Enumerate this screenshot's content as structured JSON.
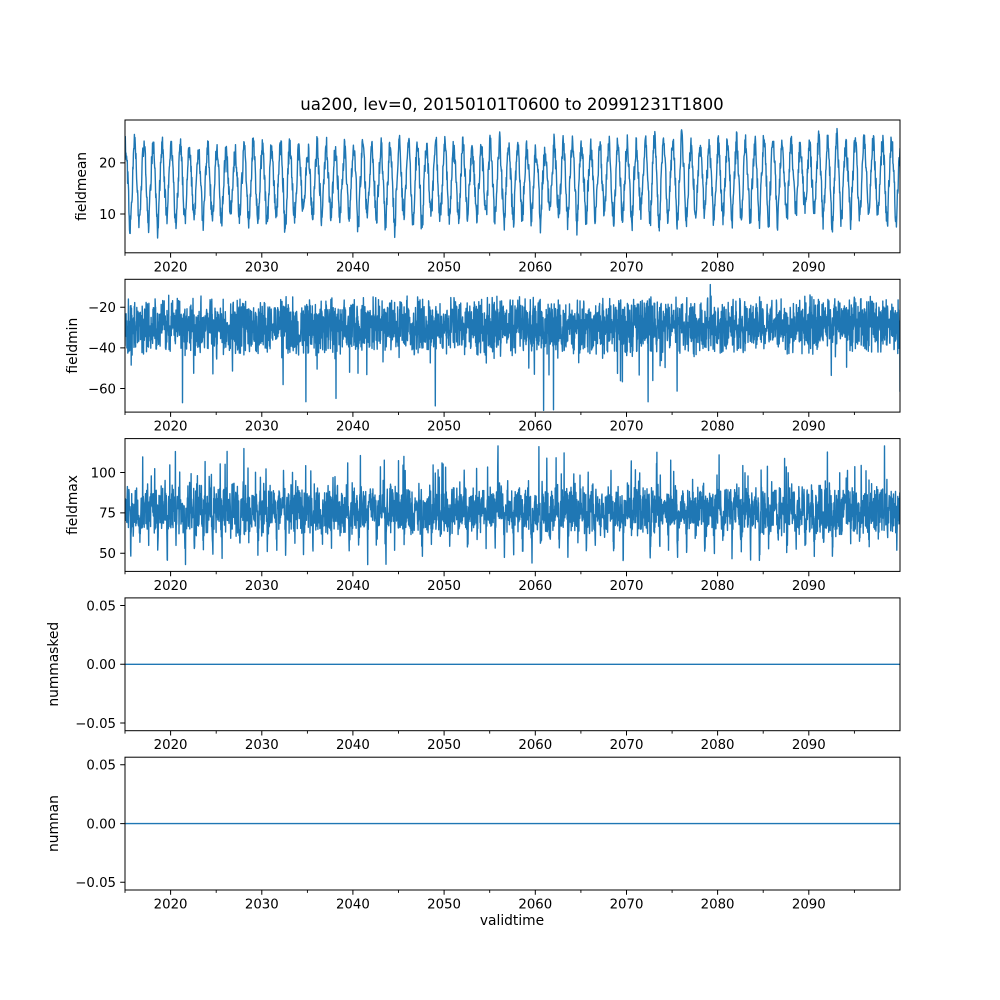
{
  "figure": {
    "title": "ua200, lev=0, 20150101T0600 to 20991231T1800",
    "background_color": "#ffffff",
    "line_color": "#1f77b4",
    "axis_color": "#000000",
    "x_axis": {
      "label": "validtime",
      "lim": [
        2015,
        2100
      ],
      "major_ticks": [
        {
          "value": 2020,
          "label": "2020"
        },
        {
          "value": 2030,
          "label": "2030"
        },
        {
          "value": 2040,
          "label": "2040"
        },
        {
          "value": 2050,
          "label": "2050"
        },
        {
          "value": 2060,
          "label": "2060"
        },
        {
          "value": 2070,
          "label": "2070"
        },
        {
          "value": 2080,
          "label": "2080"
        },
        {
          "value": 2090,
          "label": "2090"
        }
      ],
      "minor_tick_values": [
        2015,
        2025,
        2035,
        2045,
        2055,
        2065,
        2075,
        2085,
        2095
      ]
    }
  },
  "chart_data": [
    {
      "type": "line",
      "ylabel": "fieldmean",
      "xlabel": "",
      "xlim": [
        2015,
        2100
      ],
      "ylim": [
        2.4,
        28.4
      ],
      "grid": false,
      "legend": "none",
      "yticks": [
        {
          "value": 20,
          "label": "20"
        },
        {
          "value": 10,
          "label": "10"
        }
      ],
      "series": {
        "name": "fieldmean",
        "pattern": "seasonal",
        "mean": 16.2,
        "seasonal_amplitude": 5.8,
        "noise_amplitude": 2.1,
        "period_years": 1,
        "trend_per_year": 0.012,
        "approx_min": 4,
        "approx_max": 27.6
      },
      "notable_extremes": []
    },
    {
      "type": "line",
      "ylabel": "fieldmin",
      "xlabel": "",
      "xlim": [
        2015,
        2100
      ],
      "ylim": [
        -71.6,
        -6.2
      ],
      "grid": false,
      "legend": "none",
      "yticks": [
        {
          "value": -20,
          "label": "−20"
        },
        {
          "value": -40,
          "label": "−40"
        },
        {
          "value": -60,
          "label": "−60"
        }
      ],
      "series": {
        "name": "fieldmin",
        "pattern": "noise-band",
        "center": -29,
        "band_halfwidth": 16,
        "spike_direction": "down",
        "spike_chance": 0.016,
        "typical_high": -13,
        "extreme_low": -70.5
      },
      "notable_extremes": [
        {
          "x": 2021.3,
          "y": -67
        },
        {
          "x": 2062.0,
          "y": -70.5
        },
        {
          "x": 2079.2,
          "y": -8.8
        }
      ]
    },
    {
      "type": "line",
      "ylabel": "fieldmax",
      "xlabel": "",
      "xlim": [
        2015,
        2100
      ],
      "ylim": [
        38.8,
        121
      ],
      "grid": false,
      "legend": "none",
      "yticks": [
        {
          "value": 100,
          "label": "100"
        },
        {
          "value": 75,
          "label": "75"
        },
        {
          "value": 50,
          "label": "50"
        }
      ],
      "series": {
        "name": "fieldmax",
        "pattern": "noise-band-annual",
        "center": 77,
        "band_halfwidth": 17,
        "spike_direction": "both",
        "up_spike_chance": 0.05,
        "extreme_high": 116,
        "extreme_low": 43
      },
      "notable_extremes": [
        {
          "x": 2026.2,
          "y": 113
        },
        {
          "x": 2060.4,
          "y": 116
        }
      ]
    },
    {
      "type": "line",
      "ylabel": "nummasked",
      "xlabel": "",
      "xlim": [
        2015,
        2100
      ],
      "ylim": [
        -0.0565,
        0.0565
      ],
      "grid": false,
      "legend": "none",
      "yticks": [
        {
          "value": 0.05,
          "label": "0.05"
        },
        {
          "value": 0,
          "label": "0.00"
        },
        {
          "value": -0.05,
          "label": "−0.05"
        }
      ],
      "series": {
        "name": "nummasked",
        "pattern": "constant",
        "value": 0
      },
      "notable_extremes": []
    },
    {
      "type": "line",
      "ylabel": "numnan",
      "xlabel": "validtime",
      "xlim": [
        2015,
        2100
      ],
      "ylim": [
        -0.0565,
        0.0565
      ],
      "grid": false,
      "legend": "none",
      "yticks": [
        {
          "value": 0.05,
          "label": "0.05"
        },
        {
          "value": 0,
          "label": "0.00"
        },
        {
          "value": -0.05,
          "label": "−0.05"
        }
      ],
      "series": {
        "name": "numnan",
        "pattern": "constant",
        "value": 0
      },
      "notable_extremes": []
    }
  ]
}
